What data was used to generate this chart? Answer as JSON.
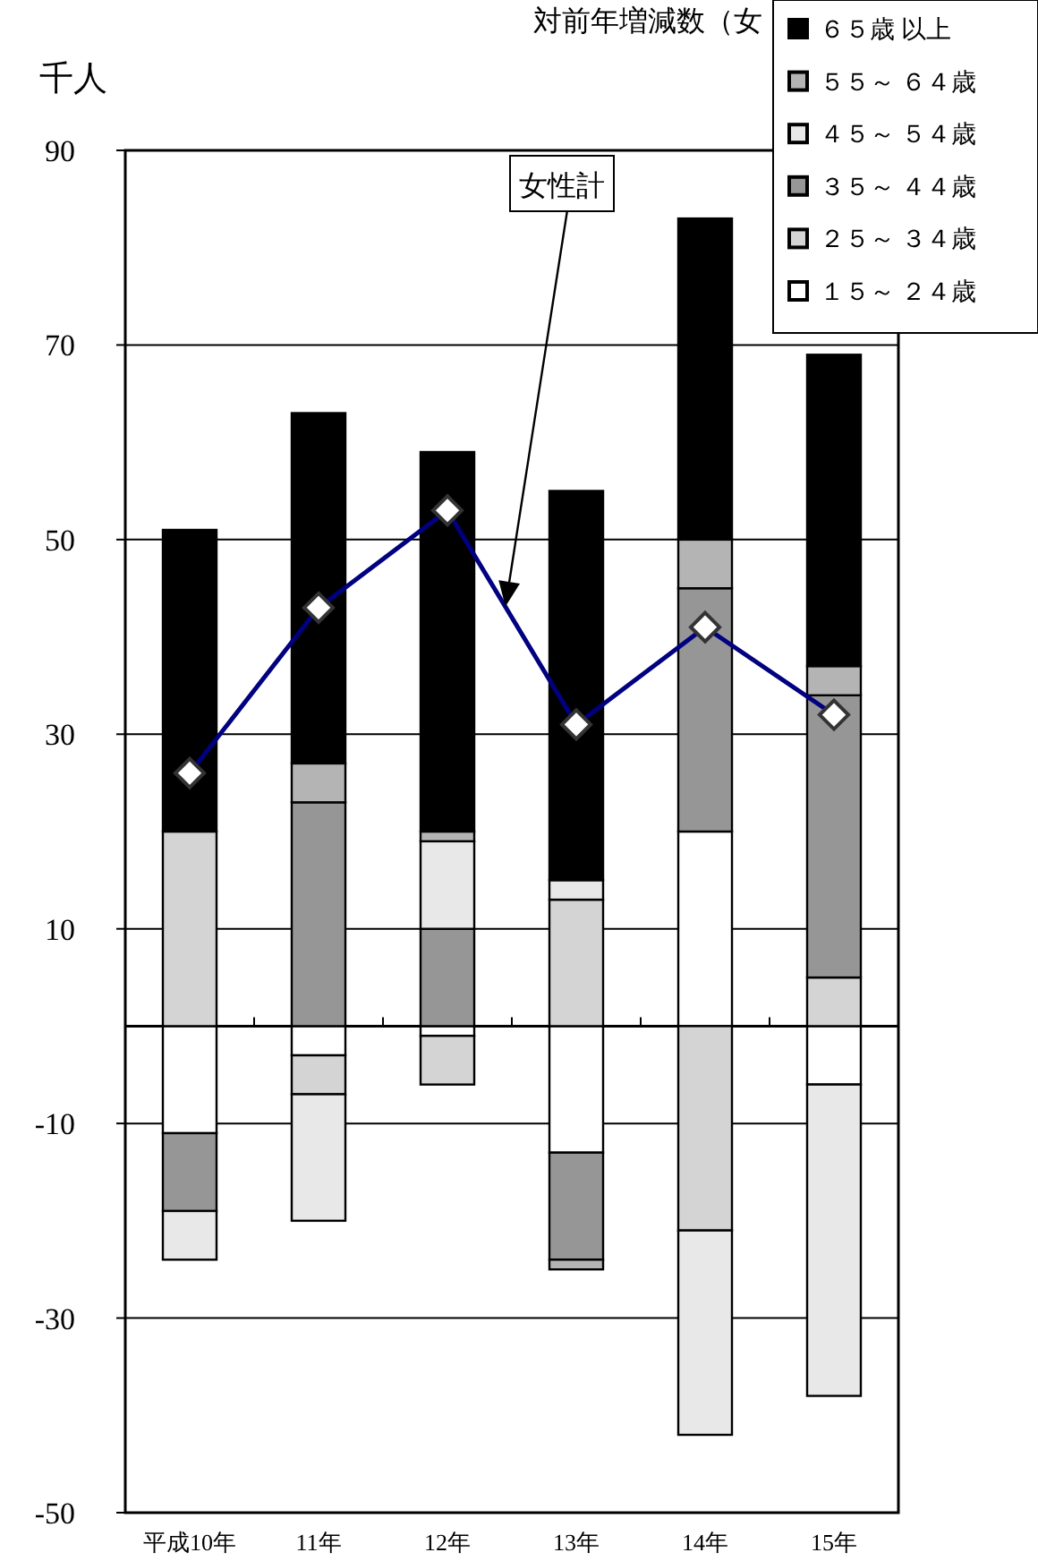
{
  "chart_data": {
    "type": "bar",
    "title": "対前年増減数（女",
    "ylabel": "千人",
    "categories": [
      "平成10年",
      "11年",
      "12年",
      "13年",
      "14年",
      "15年"
    ],
    "stacked": true,
    "ylim": [
      -50,
      90
    ],
    "yticks": [
      -50,
      -30,
      -10,
      10,
      30,
      50,
      70,
      90
    ],
    "grid": "y",
    "legend": "top right",
    "series": [
      {
        "name": "１５～ ２４歳",
        "color": "#ffffff",
        "values": [
          -11,
          -3,
          -1,
          -13,
          20,
          -6
        ]
      },
      {
        "name": "２５～ ３４歳",
        "color": "#d4d4d4",
        "values": [
          20,
          -4,
          -5,
          13,
          -21,
          5
        ]
      },
      {
        "name": "３５～ ４４歳",
        "color": "#969696",
        "values": [
          -8,
          23,
          10,
          -11,
          25,
          29
        ]
      },
      {
        "name": "４５～ ５４歳",
        "color": "#e8e8e8",
        "values": [
          -5,
          -13,
          9,
          2,
          -21,
          -32
        ]
      },
      {
        "name": "５５～ ６４歳",
        "color": "#b4b4b4",
        "values": [
          null,
          4,
          1,
          -1,
          5,
          3
        ]
      },
      {
        "name": "６５歳 以上",
        "color": "#000000",
        "values": [
          31,
          36,
          39,
          40,
          33,
          32
        ]
      },
      {
        "name": "女性計",
        "type": "line",
        "marker": "diamond",
        "color": "#000080",
        "values": [
          26,
          43,
          53,
          31,
          41,
          32
        ]
      }
    ]
  }
}
